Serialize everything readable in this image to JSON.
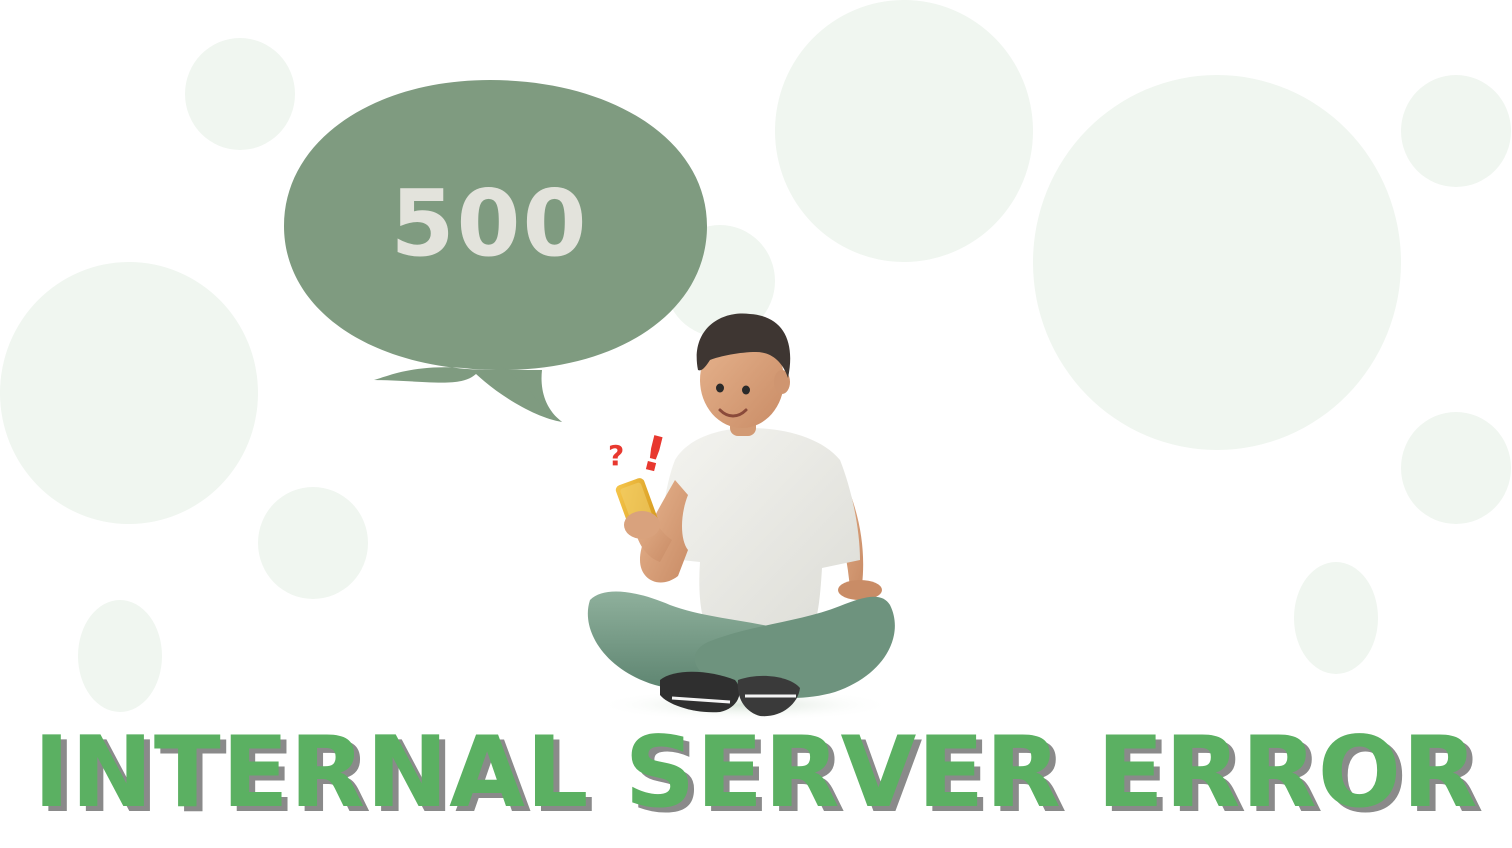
{
  "speech_bubble": {
    "code": "500",
    "fill": "#7f9b80",
    "text_color": "#e3e3dc"
  },
  "headline": {
    "text": "INTERNAL SERVER ERROR",
    "color": "#5bb062",
    "shadow_color": "#8a8a8a"
  },
  "illustration": {
    "alert_marks": {
      "question": "?",
      "exclamation": "!",
      "color": "#e8382f"
    }
  },
  "colors": {
    "background": "#ffffff",
    "decorative_circle": "#f0f6f0"
  }
}
